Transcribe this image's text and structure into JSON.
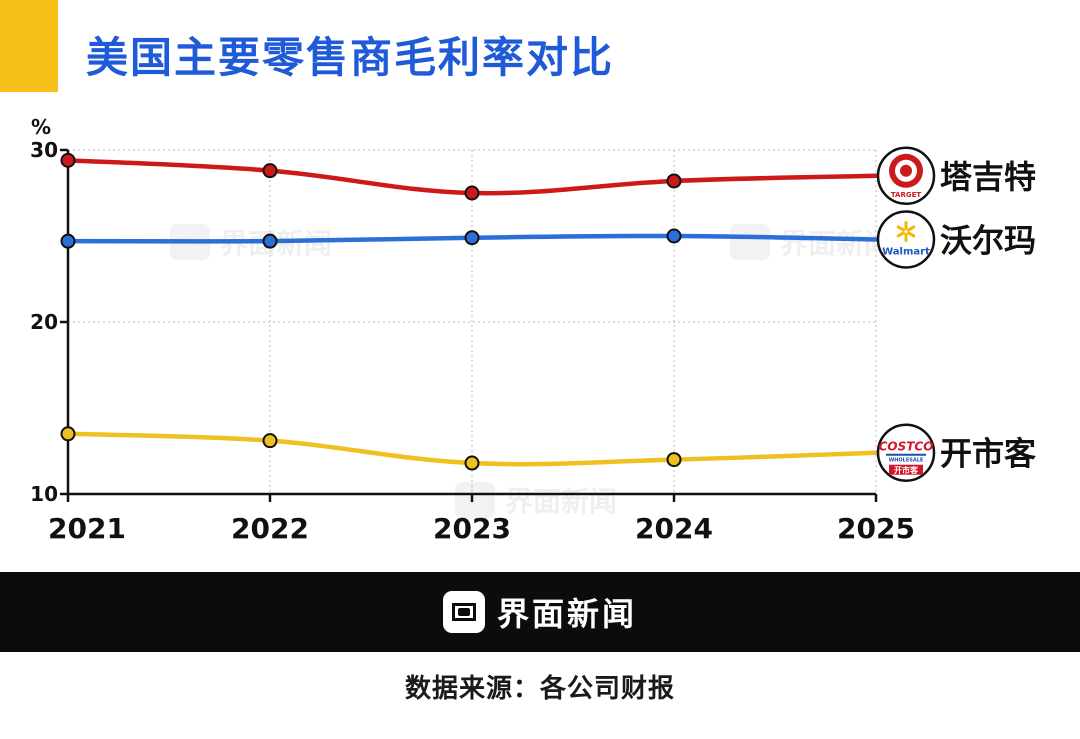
{
  "title": "美国主要零售商毛利率对比",
  "watermark_text": "界面新闻",
  "footer": {
    "brand": "界面新闻",
    "source": "数据来源：各公司财报"
  },
  "colors": {
    "title": "#1f5bd8",
    "accent": "#f5c018",
    "target": "#cc1a1a",
    "walmart": "#2b6fd8",
    "costco": "#f0c020",
    "footer_bg": "#0c0c0c"
  },
  "logos": {
    "target": {
      "icon": "target-bullseye-logo",
      "text": "TARGET"
    },
    "walmart": {
      "icon": "walmart-spark-logo",
      "text": "Walmart"
    },
    "costco": {
      "icon": "costco-logo",
      "text": "COSTCO",
      "subtext": "WHOLESALE",
      "cn": "开市客"
    }
  },
  "chart_data": {
    "type": "line",
    "title": "美国主要零售商毛利率对比",
    "ylabel": "%",
    "xlabel": "",
    "x": [
      "2021",
      "2022",
      "2023",
      "2024",
      "2025"
    ],
    "ylim": [
      10,
      30
    ],
    "yticks": [
      10,
      20,
      30
    ],
    "grid": true,
    "legend_placement": "right (labels at line ends)",
    "series": [
      {
        "key": "target",
        "name": "塔吉特",
        "color": "#cc1a1a",
        "values": [
          29.4,
          28.8,
          27.5,
          28.2,
          28.5
        ]
      },
      {
        "key": "walmart",
        "name": "沃尔玛",
        "color": "#2b6fd8",
        "values": [
          24.7,
          24.7,
          24.9,
          25.0,
          24.8
        ]
      },
      {
        "key": "costco",
        "name": "开市客",
        "color": "#f0c020",
        "values": [
          13.5,
          13.1,
          11.8,
          12.0,
          12.4
        ]
      }
    ]
  }
}
